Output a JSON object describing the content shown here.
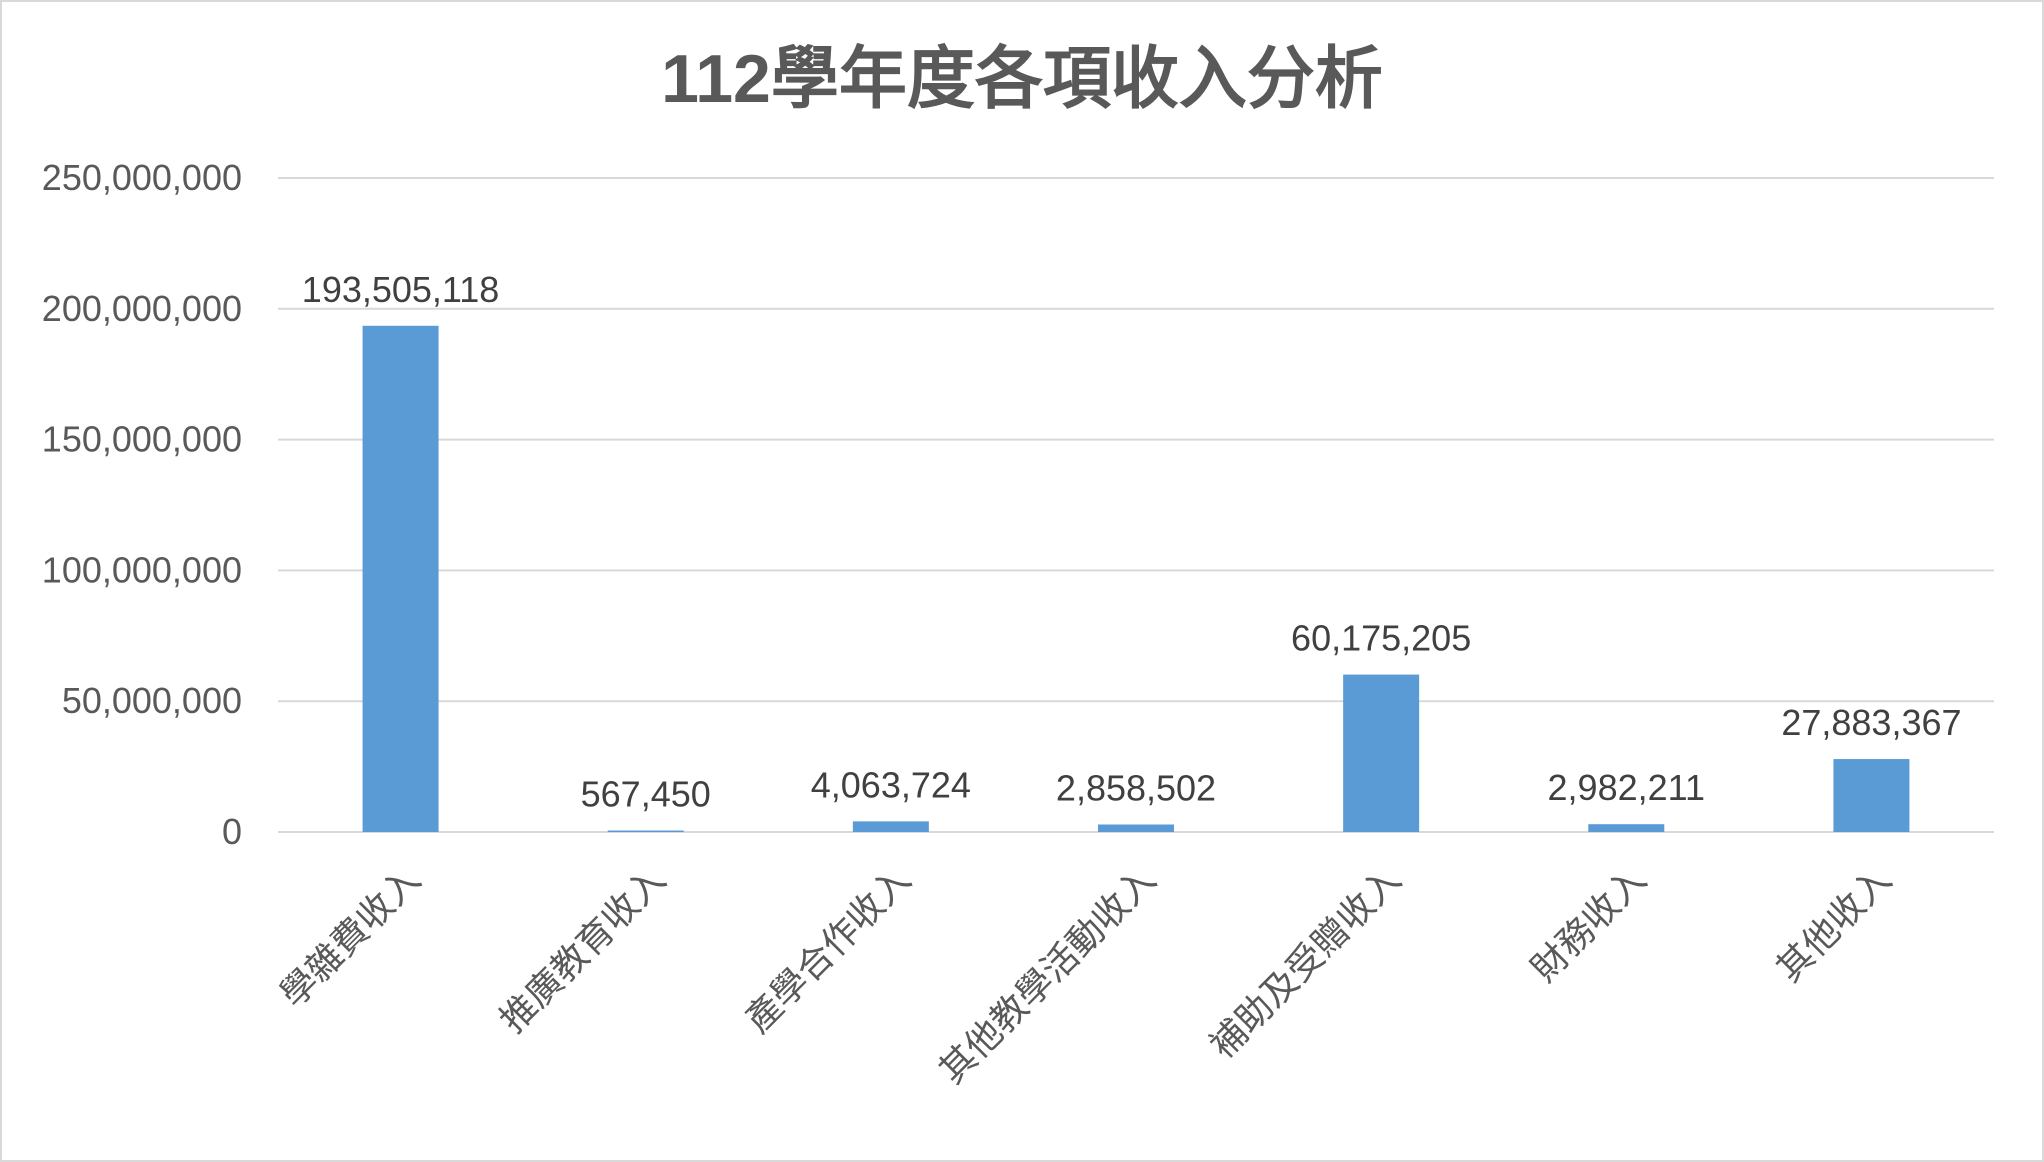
{
  "chart_data": {
    "type": "bar",
    "title": "112學年度各項收入分析",
    "categories": [
      "學雜費收入",
      "推廣教育收入",
      "產學合作收入",
      "其他教學活動收入",
      "補助及受贈收入",
      "財務收入",
      "其他收入"
    ],
    "values": [
      193505118,
      567450,
      4063724,
      2858502,
      60175205,
      2982211,
      27883367
    ],
    "data_labels": [
      "193,505,118",
      "567,450",
      "4,063,724",
      "2,858,502",
      "60,175,205",
      "2,982,211",
      "27,883,367"
    ],
    "ylim": [
      0,
      250000000
    ],
    "yticks": [
      0,
      50000000,
      100000000,
      150000000,
      200000000,
      250000000
    ],
    "ytick_labels": [
      "0",
      "50,000,000",
      "100,000,000",
      "150,000,000",
      "200,000,000",
      "250,000,000"
    ],
    "grid": true,
    "bar_color": "#5b9bd5",
    "grid_color": "#d9d9d9"
  }
}
